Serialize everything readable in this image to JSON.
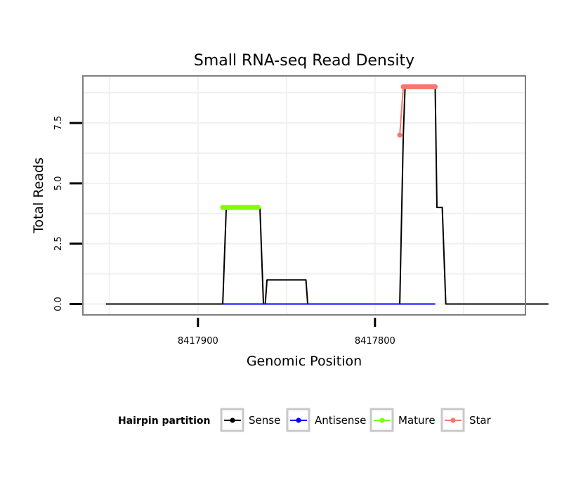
{
  "chart_data": {
    "type": "line",
    "title": "Small RNA-seq Read Density",
    "xlabel": "Genomic Position",
    "ylabel": "Total Reads",
    "x_reversed": true,
    "xlim": [
      8417965,
      8417715
    ],
    "ylim": [
      -0.45,
      9.45
    ],
    "x_ticks": [
      {
        "value": 8417900,
        "label": "8417900"
      },
      {
        "value": 8417800,
        "label": "8417800"
      }
    ],
    "y_ticks": [
      {
        "value": 0,
        "label": "0.0"
      },
      {
        "value": 2.5,
        "label": "2.5"
      },
      {
        "value": 5,
        "label": "5.0"
      },
      {
        "value": 7.5,
        "label": "7.5"
      }
    ],
    "grid": true,
    "legend_position": "bottom",
    "series": [
      {
        "name": "Sense",
        "color": "#000000",
        "x": [
          8417952,
          8417886,
          8417884,
          8417866,
          8417865,
          8417863,
          8417862,
          8417861,
          8417860,
          8417859,
          8417839,
          8417838,
          8417786,
          8417784,
          8417783,
          8417766,
          8417765,
          8417763,
          8417762,
          8417760,
          8417752,
          8417751,
          8417702
        ],
        "y": [
          0,
          0,
          4,
          4,
          4,
          0,
          0,
          1,
          1,
          1,
          1,
          0,
          0,
          7,
          9,
          9,
          4,
          4,
          4,
          0,
          0,
          0,
          0
        ]
      },
      {
        "name": "Antisense",
        "color": "#0000ff",
        "x": [
          8417886,
          8417866,
          8417786,
          8417766
        ],
        "y": [
          0,
          0,
          0,
          0
        ]
      },
      {
        "name": "Mature",
        "color": "#7fff00",
        "x": [
          8417886,
          8417885,
          8417884,
          8417883,
          8417882,
          8417881,
          8417880,
          8417879,
          8417878,
          8417877,
          8417876,
          8417875,
          8417874,
          8417873,
          8417872,
          8417871,
          8417870,
          8417869,
          8417868,
          8417867,
          8417866
        ],
        "y": [
          4,
          4,
          4,
          4,
          4,
          4,
          4,
          4,
          4,
          4,
          4,
          4,
          4,
          4,
          4,
          4,
          4,
          4,
          4,
          4,
          4
        ]
      },
      {
        "name": "Star",
        "color": "#f8766d",
        "x": [
          8417786,
          8417784,
          8417783,
          8417782,
          8417781,
          8417780,
          8417779,
          8417778,
          8417777,
          8417776,
          8417775,
          8417774,
          8417773,
          8417772,
          8417771,
          8417770,
          8417769,
          8417768,
          8417767,
          8417766
        ],
        "y": [
          7,
          9,
          9,
          9,
          9,
          9,
          9,
          9,
          9,
          9,
          9,
          9,
          9,
          9,
          9,
          9,
          9,
          9,
          9,
          9
        ]
      }
    ],
    "legend": {
      "title": "Hairpin partition",
      "entries": [
        {
          "label": "Sense",
          "color": "#000000"
        },
        {
          "label": "Antisense",
          "color": "#0000ff"
        },
        {
          "label": "Mature",
          "color": "#7fff00"
        },
        {
          "label": "Star",
          "color": "#f8766d"
        }
      ]
    }
  }
}
